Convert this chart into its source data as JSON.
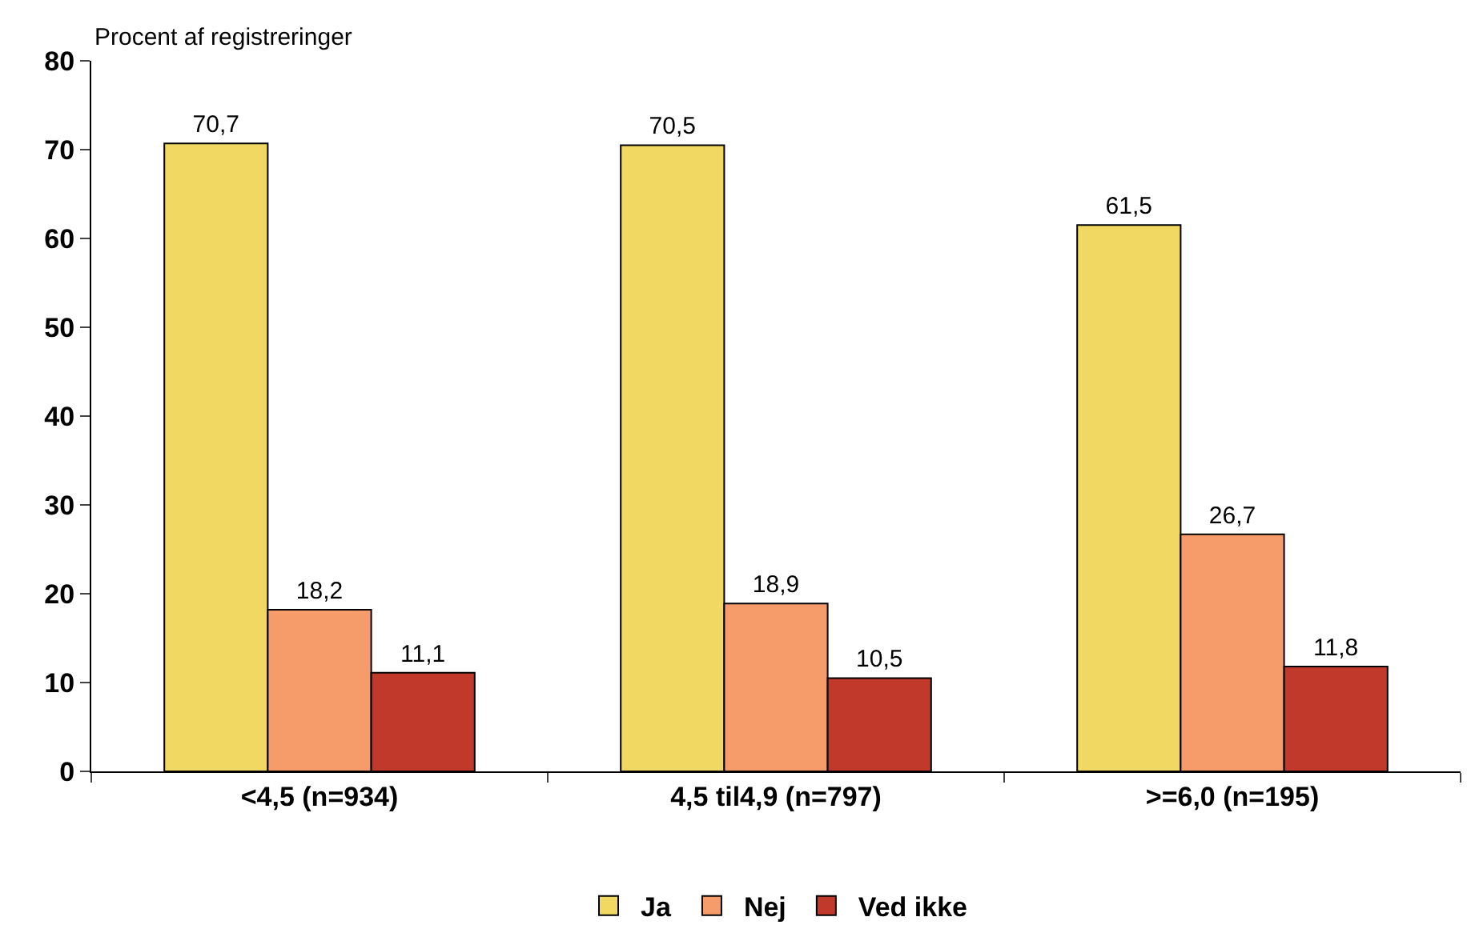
{
  "chart_data": {
    "type": "bar",
    "ylabel": "Procent af registreringer",
    "categories": [
      "<4,5 (n=934)",
      "4,5 til4,9 (n=797)",
      ">=6,0 (n=195)"
    ],
    "series": [
      {
        "name": "Ja",
        "color": "#f0d862",
        "values": [
          70.7,
          70.5,
          61.5
        ],
        "value_labels": [
          "70,7",
          "70,5",
          "61,5"
        ]
      },
      {
        "name": "Nej",
        "color": "#f59c6a",
        "values": [
          18.2,
          18.9,
          26.7
        ],
        "value_labels": [
          "18,2",
          "18,9",
          "26,7"
        ]
      },
      {
        "name": "Ved ikke",
        "color": "#c0392b",
        "values": [
          11.1,
          10.5,
          11.8
        ],
        "value_labels": [
          "11,1",
          "10,5",
          "11,8"
        ]
      }
    ],
    "ylim": [
      0,
      80
    ],
    "yticks": [
      0,
      10,
      20,
      30,
      40,
      50,
      60,
      70,
      80
    ],
    "grid": false,
    "legend": "bottom"
  }
}
